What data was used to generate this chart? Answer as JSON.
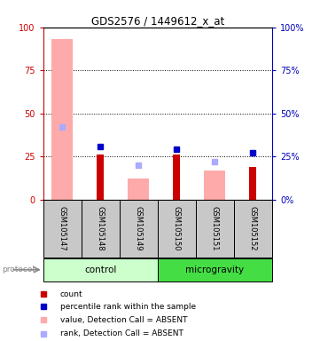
{
  "title": "GDS2576 / 1449612_x_at",
  "samples": [
    "GSM105147",
    "GSM105148",
    "GSM105149",
    "GSM105150",
    "GSM105151",
    "GSM105152"
  ],
  "groups": [
    "control",
    "control",
    "control",
    "microgravity",
    "microgravity",
    "microgravity"
  ],
  "pink_bars": [
    93,
    0,
    12,
    0,
    17,
    0
  ],
  "dark_red_bars": [
    0,
    26,
    0,
    26,
    0,
    19
  ],
  "blue_squares": [
    null,
    31,
    null,
    29,
    null,
    27
  ],
  "light_blue_squares": [
    42,
    null,
    20,
    null,
    22,
    null
  ],
  "yticks": [
    0,
    25,
    50,
    75,
    100
  ],
  "grid_lines": [
    25,
    50,
    75
  ],
  "control_color_light": "#ccffcc",
  "control_color_dark": "#44dd44",
  "microgravity_color": "#44dd44",
  "gray_bg": "#c8c8c8",
  "pink_color": "#ffaaaa",
  "dark_red_color": "#cc0000",
  "blue_color": "#0000cc",
  "light_blue_color": "#aaaaff",
  "left_tick_color": "#cc0000",
  "right_tick_color": "#0000bb",
  "legend_items": [
    {
      "color": "#cc0000",
      "label": "count"
    },
    {
      "color": "#0000cc",
      "label": "percentile rank within the sample"
    },
    {
      "color": "#ffaaaa",
      "label": "value, Detection Call = ABSENT"
    },
    {
      "color": "#aaaaff",
      "label": "rank, Detection Call = ABSENT"
    }
  ]
}
